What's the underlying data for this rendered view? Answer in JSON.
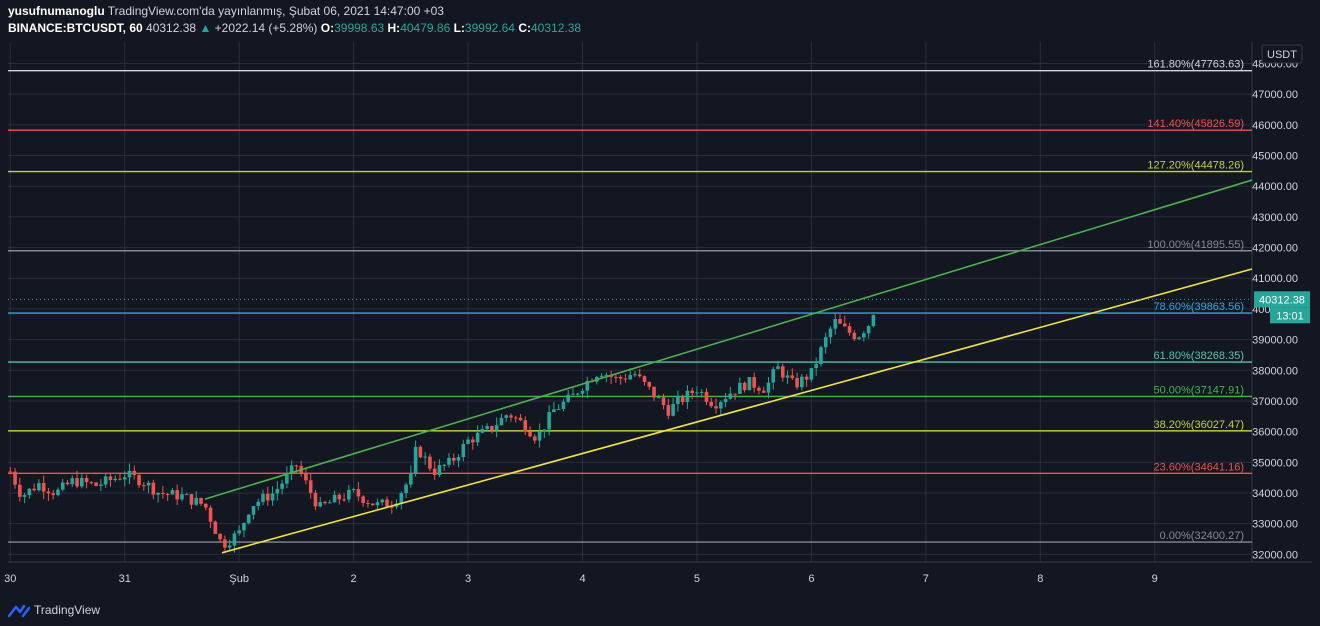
{
  "header": {
    "author": "yusufnumanoglu",
    "published": "TradingView.com'da yayınlanmış, Şubat 06, 2021 14:47:00 +03",
    "symbol": "BINANCE:BTCUSDT, 60",
    "last": "40312.38",
    "change_arrow": "▲",
    "change": "+2022.14 (+5.28%)",
    "open_label": "O:",
    "open": "39998.63",
    "high_label": "H:",
    "high": "40479.86",
    "low_label": "L:",
    "low": "39992.64",
    "close_label": "C:",
    "close": "40312.38"
  },
  "footer": {
    "brand": "TradingView",
    "logo_icon": "tradingview-logo-icon"
  },
  "colors": {
    "background": "#131722",
    "up": "#26a69a",
    "down": "#ef5350",
    "grid": "#2a2e39",
    "axis_text": "#d1d4dc",
    "green_channel": "#4caf50",
    "yellow_channel": "#f0e442"
  },
  "chart_data": {
    "type": "candlestick",
    "currency_label": "USDT",
    "y_axis_ticks": [
      32000,
      33000,
      34000,
      35000,
      36000,
      37000,
      38000,
      39000,
      40000,
      41000,
      42000,
      43000,
      44000,
      45000,
      46000,
      47000,
      48000
    ],
    "ylim": [
      31750,
      48700
    ],
    "x_tick_labels": [
      "30",
      "31",
      "Şub",
      "2",
      "3",
      "4",
      "5",
      "6",
      "7",
      "8",
      "9"
    ],
    "x_ticks_day_index": [
      -1,
      0,
      1,
      2,
      3,
      4,
      5,
      6,
      7,
      8,
      9
    ],
    "xlim_day_index": [
      -1.02,
      9.85
    ],
    "last_price_label": "40312.38",
    "countdown_label": "13:01",
    "fibonacci_levels": [
      {
        "label": "161.80%(47763.63)",
        "price": 47763.63,
        "color": "#d1d4dc"
      },
      {
        "label": "141.40%(45826.59)",
        "price": 45826.59,
        "color": "#ef5350"
      },
      {
        "label": "127.20%(44478.26)",
        "price": 44478.26,
        "color": "#c0d43c"
      },
      {
        "label": "100.00%(41895.55)",
        "price": 41895.55,
        "color": "#868993"
      },
      {
        "label": "78.60%(39863.56)",
        "price": 39863.56,
        "color": "#2fa8dd"
      },
      {
        "label": "61.80%(38268.35)",
        "price": 38268.35,
        "color": "#4dc9a8"
      },
      {
        "label": "50.00%(37147.91)",
        "price": 37147.91,
        "color": "#4caf50"
      },
      {
        "label": "38.20%(36027.47)",
        "price": 36027.47,
        "color": "#c0d43c"
      },
      {
        "label": "23.60%(34641.16)",
        "price": 34641.16,
        "color": "#ef5350"
      },
      {
        "label": "0.00%(32400.27)",
        "price": 32400.27,
        "color": "#868993"
      }
    ],
    "trend_lines": [
      {
        "name": "upper-channel",
        "color": "#4caf50",
        "from": {
          "day": 0.7,
          "price": 33800
        },
        "to": {
          "day": 9.85,
          "price": 44200
        }
      },
      {
        "name": "lower-channel",
        "color": "#f0e442",
        "from": {
          "day": 0.85,
          "price": 32050
        },
        "to": {
          "day": 9.85,
          "price": 41300
        }
      }
    ],
    "price_path": [
      [
        -1.0,
        34700
      ],
      [
        -0.9,
        33900
      ],
      [
        -0.75,
        34300
      ],
      [
        -0.6,
        34000
      ],
      [
        -0.45,
        34400
      ],
      [
        -0.25,
        34250
      ],
      [
        0.0,
        34600
      ],
      [
        0.15,
        34400
      ],
      [
        0.3,
        34000
      ],
      [
        0.5,
        33900
      ],
      [
        0.7,
        33600
      ],
      [
        0.85,
        32300
      ],
      [
        1.0,
        32700
      ],
      [
        1.1,
        33600
      ],
      [
        1.3,
        34000
      ],
      [
        1.5,
        34900
      ],
      [
        1.7,
        33500
      ],
      [
        1.85,
        33800
      ],
      [
        2.0,
        34000
      ],
      [
        2.2,
        33600
      ],
      [
        2.35,
        33700
      ],
      [
        2.5,
        34500
      ],
      [
        2.55,
        35500
      ],
      [
        2.7,
        34700
      ],
      [
        2.85,
        35000
      ],
      [
        3.0,
        35700
      ],
      [
        3.2,
        36100
      ],
      [
        3.35,
        36600
      ],
      [
        3.5,
        36200
      ],
      [
        3.6,
        35800
      ],
      [
        3.75,
        36700
      ],
      [
        3.9,
        37100
      ],
      [
        4.0,
        37500
      ],
      [
        4.15,
        38000
      ],
      [
        4.3,
        37700
      ],
      [
        4.45,
        37900
      ],
      [
        4.6,
        37300
      ],
      [
        4.75,
        36700
      ],
      [
        4.85,
        37000
      ],
      [
        5.0,
        37400
      ],
      [
        5.15,
        36900
      ],
      [
        5.3,
        37300
      ],
      [
        5.45,
        37600
      ],
      [
        5.6,
        37400
      ],
      [
        5.7,
        38100
      ],
      [
        5.85,
        37500
      ],
      [
        6.0,
        37900
      ],
      [
        6.1,
        38800
      ],
      [
        6.2,
        39600
      ],
      [
        6.3,
        39300
      ],
      [
        6.4,
        39100
      ],
      [
        6.5,
        39500
      ],
      [
        6.58,
        40312.38
      ]
    ]
  }
}
